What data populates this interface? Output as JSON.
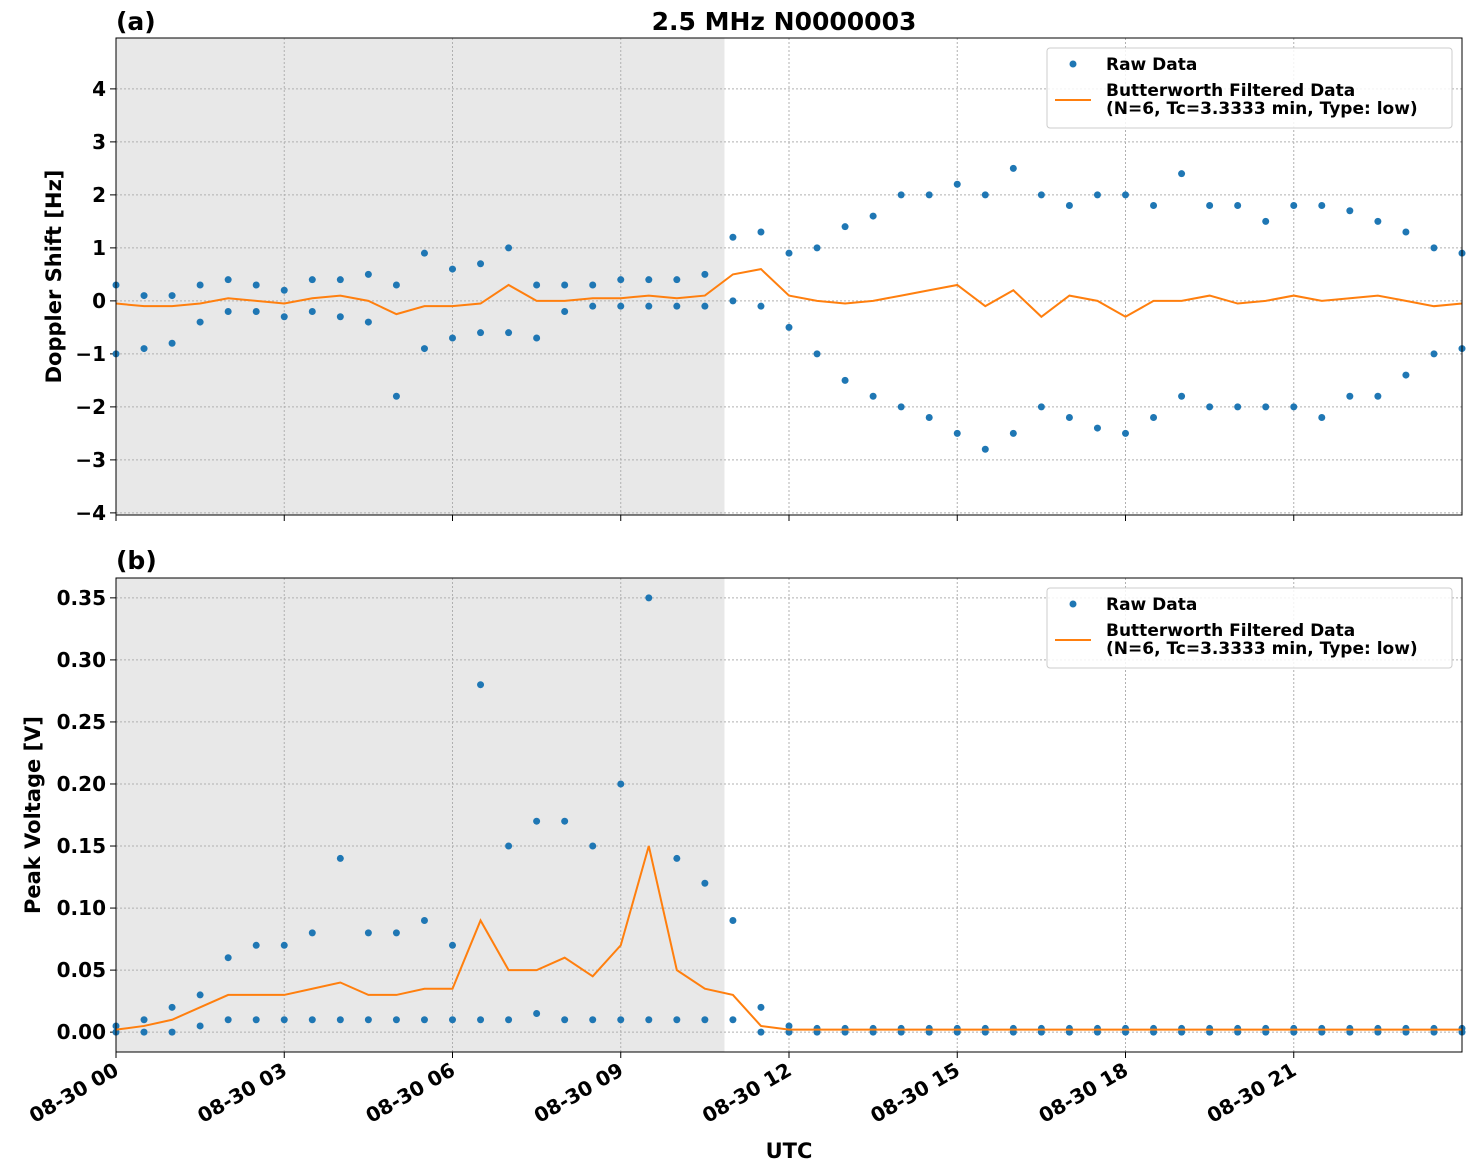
{
  "chart_data": [
    {
      "type": "scatter",
      "title": "2.5 MHz N0000003",
      "panel_label": "(a)",
      "ylabel": "Doppler Shift [Hz]",
      "xlim": [
        0,
        24
      ],
      "ylim": [
        -4.04,
        4.96
      ],
      "yticks": [
        {
          "value": -4,
          "label": "−4"
        },
        {
          "value": -3,
          "label": "−3"
        },
        {
          "value": -2,
          "label": "−2"
        },
        {
          "value": -1,
          "label": "−1"
        },
        0,
        1,
        2,
        3,
        4
      ],
      "shaded_xlim": [
        0,
        10.85
      ],
      "grid": true,
      "legend": "upper right",
      "series": [
        {
          "name": "Raw Data",
          "mode": "markers",
          "color": "#1f77b4",
          "x": [
            0,
            0.5,
            1,
            1.5,
            2,
            2.5,
            3,
            3.5,
            4,
            4.5,
            5,
            5.5,
            6,
            6.5,
            7,
            7.5,
            8,
            8.5,
            9,
            9.5,
            10,
            10.5,
            11,
            11.5,
            12,
            12.5,
            13,
            13.5,
            14,
            14.5,
            15,
            15.5,
            16,
            16.5,
            17,
            17.5,
            18,
            18.5,
            19,
            19.5,
            20,
            20.5,
            21,
            21.5,
            22,
            22.5,
            23,
            23.5,
            24,
            0,
            0.5,
            1,
            1.5,
            2,
            2.5,
            3,
            3.5,
            4,
            4.5,
            5,
            5.5,
            6,
            6.5,
            7,
            7.5,
            8,
            8.5,
            9,
            9.5,
            10,
            10.5,
            11,
            11.5,
            12,
            12.5,
            13,
            13.5,
            14,
            14.5,
            15,
            15.5,
            16,
            16.5,
            17,
            17.5,
            18,
            18.5,
            19,
            19.5,
            20,
            20.5,
            21,
            21.5,
            22,
            22.5,
            23,
            23.5,
            24
          ],
          "values": [
            0.3,
            0.1,
            0.1,
            0.3,
            0.4,
            0.3,
            0.2,
            0.4,
            0.4,
            0.5,
            0.3,
            0.9,
            0.6,
            0.7,
            1.0,
            0.3,
            0.3,
            0.3,
            0.4,
            0.4,
            0.4,
            0.5,
            1.2,
            1.3,
            0.9,
            1.0,
            1.4,
            1.6,
            2.0,
            2.0,
            2.2,
            2.0,
            2.5,
            2.0,
            1.8,
            2.0,
            2.0,
            1.8,
            2.4,
            1.8,
            1.8,
            1.5,
            1.8,
            1.8,
            1.7,
            1.5,
            1.3,
            1.0,
            0.9,
            -1.0,
            -0.9,
            -0.8,
            -0.4,
            -0.2,
            -0.2,
            -0.3,
            -0.2,
            -0.3,
            -0.4,
            -1.8,
            -0.9,
            -0.7,
            -0.6,
            -0.6,
            -0.7,
            -0.2,
            -0.1,
            -0.1,
            -0.1,
            -0.1,
            -0.1,
            0.0,
            -0.1,
            -0.5,
            -1.0,
            -1.5,
            -1.8,
            -2.0,
            -2.2,
            -2.5,
            -2.8,
            -2.5,
            -2.0,
            -2.2,
            -2.4,
            -2.5,
            -2.2,
            -1.8,
            -2.0,
            -2.0,
            -2.0,
            -2.0,
            -2.2,
            -1.8,
            -1.8,
            -1.4,
            -1.0,
            -0.9
          ]
        },
        {
          "name": "Butterworth Filtered Data\n(N=6, Tc=3.3333 min, Type: low)",
          "mode": "line",
          "color": "#ff7f0e",
          "x": [
            0,
            0.5,
            1,
            1.5,
            2,
            2.5,
            3,
            3.5,
            4,
            4.5,
            5,
            5.5,
            6,
            6.5,
            7,
            7.5,
            8,
            8.5,
            9,
            9.5,
            10,
            10.5,
            11,
            11.5,
            12,
            12.5,
            13,
            13.5,
            14,
            14.5,
            15,
            15.5,
            16,
            16.5,
            17,
            17.5,
            18,
            18.5,
            19,
            19.5,
            20,
            20.5,
            21,
            21.5,
            22,
            22.5,
            23,
            23.5,
            24
          ],
          "values": [
            -0.05,
            -0.1,
            -0.1,
            -0.05,
            0.05,
            0.0,
            -0.05,
            0.05,
            0.1,
            0.0,
            -0.25,
            -0.1,
            -0.1,
            -0.05,
            0.3,
            0.0,
            0.0,
            0.05,
            0.05,
            0.1,
            0.05,
            0.1,
            0.5,
            0.6,
            0.1,
            0.0,
            -0.05,
            0.0,
            0.1,
            0.2,
            0.3,
            -0.1,
            0.2,
            -0.3,
            0.1,
            0.0,
            -0.3,
            0.0,
            0.0,
            0.1,
            -0.05,
            0.0,
            0.1,
            0.0,
            0.05,
            0.1,
            0.0,
            -0.1,
            -0.05
          ]
        }
      ]
    },
    {
      "type": "scatter",
      "panel_label": "(b)",
      "ylabel": "Peak Voltage [V]",
      "xlabel": "UTC",
      "xlim": [
        0,
        24
      ],
      "ylim": [
        -0.016,
        0.366
      ],
      "xticks": [
        {
          "value": 0,
          "label": "08-30 00"
        },
        {
          "value": 3,
          "label": "08-30 03"
        },
        {
          "value": 6,
          "label": "08-30 06"
        },
        {
          "value": 9,
          "label": "08-30 09"
        },
        {
          "value": 12,
          "label": "08-30 12"
        },
        {
          "value": 15,
          "label": "08-30 15"
        },
        {
          "value": 18,
          "label": "08-30 18"
        },
        {
          "value": 21,
          "label": "08-30 21"
        }
      ],
      "yticks": [
        {
          "value": 0,
          "label": "0.00"
        },
        {
          "value": 0.05,
          "label": "0.05"
        },
        {
          "value": 0.1,
          "label": "0.10"
        },
        {
          "value": 0.15,
          "label": "0.15"
        },
        {
          "value": 0.2,
          "label": "0.20"
        },
        {
          "value": 0.25,
          "label": "0.25"
        },
        {
          "value": 0.3,
          "label": "0.30"
        },
        {
          "value": 0.35,
          "label": "0.35"
        }
      ],
      "shaded_xlim": [
        0,
        10.85
      ],
      "grid": true,
      "legend": "upper right",
      "series": [
        {
          "name": "Raw Data",
          "mode": "markers",
          "color": "#1f77b4",
          "x": [
            0,
            0.5,
            1,
            1.5,
            2,
            2.5,
            3,
            3.5,
            4,
            4.5,
            5,
            5.5,
            6,
            6.5,
            7,
            7.5,
            8,
            8.5,
            9,
            9.5,
            10,
            10.5,
            11,
            11.5,
            12,
            12.5,
            13,
            13.5,
            14,
            14.5,
            15,
            15.5,
            16,
            16.5,
            17,
            17.5,
            18,
            18.5,
            19,
            19.5,
            20,
            20.5,
            21,
            21.5,
            22,
            22.5,
            23,
            23.5,
            24,
            0,
            0.5,
            1,
            1.5,
            2,
            2.5,
            3,
            3.5,
            4,
            4.5,
            5,
            5.5,
            6,
            6.5,
            7,
            7.5,
            8,
            8.5,
            9,
            9.5,
            10,
            10.5,
            11,
            11.5,
            12,
            12.5,
            13,
            13.5,
            14,
            14.5,
            15,
            15.5,
            16,
            16.5,
            17,
            17.5,
            18,
            18.5,
            19,
            19.5,
            20,
            20.5,
            21,
            21.5,
            22,
            22.5,
            23,
            23.5,
            24
          ],
          "values": [
            0.005,
            0.01,
            0.02,
            0.03,
            0.06,
            0.07,
            0.07,
            0.08,
            0.14,
            0.08,
            0.08,
            0.09,
            0.07,
            0.28,
            0.15,
            0.17,
            0.17,
            0.15,
            0.2,
            0.35,
            0.14,
            0.12,
            0.09,
            0.02,
            0.005,
            0.003,
            0.003,
            0.003,
            0.003,
            0.003,
            0.003,
            0.003,
            0.003,
            0.003,
            0.003,
            0.003,
            0.003,
            0.003,
            0.003,
            0.003,
            0.003,
            0.003,
            0.003,
            0.003,
            0.003,
            0.003,
            0.003,
            0.003,
            0.003,
            0,
            0,
            0,
            0.005,
            0.01,
            0.01,
            0.01,
            0.01,
            0.01,
            0.01,
            0.01,
            0.01,
            0.01,
            0.01,
            0.01,
            0.015,
            0.01,
            0.01,
            0.01,
            0.01,
            0.01,
            0.01,
            0.01,
            0,
            0,
            0,
            0,
            0,
            0,
            0,
            0,
            0,
            0,
            0,
            0,
            0,
            0,
            0,
            0,
            0,
            0,
            0,
            0,
            0,
            0,
            0,
            0,
            0,
            0
          ]
        },
        {
          "name": "Butterworth Filtered Data\n(N=6, Tc=3.3333 min, Type: low)",
          "mode": "line",
          "color": "#ff7f0e",
          "x": [
            0,
            0.5,
            1,
            1.5,
            2,
            2.5,
            3,
            3.5,
            4,
            4.5,
            5,
            5.5,
            6,
            6.5,
            7,
            7.5,
            8,
            8.5,
            9,
            9.5,
            10,
            10.5,
            11,
            11.5,
            12,
            12.5,
            13,
            13.5,
            14,
            14.5,
            15,
            15.5,
            16,
            16.5,
            17,
            17.5,
            18,
            18.5,
            19,
            19.5,
            20,
            20.5,
            21,
            21.5,
            22,
            22.5,
            23,
            23.5,
            24
          ],
          "values": [
            0.002,
            0.005,
            0.01,
            0.02,
            0.03,
            0.03,
            0.03,
            0.035,
            0.04,
            0.03,
            0.03,
            0.035,
            0.035,
            0.09,
            0.05,
            0.05,
            0.06,
            0.045,
            0.07,
            0.15,
            0.05,
            0.035,
            0.03,
            0.005,
            0.002,
            0.002,
            0.002,
            0.002,
            0.002,
            0.002,
            0.002,
            0.002,
            0.002,
            0.002,
            0.002,
            0.002,
            0.002,
            0.002,
            0.002,
            0.002,
            0.002,
            0.002,
            0.002,
            0.002,
            0.002,
            0.002,
            0.002,
            0.002,
            0.002
          ]
        }
      ]
    }
  ]
}
